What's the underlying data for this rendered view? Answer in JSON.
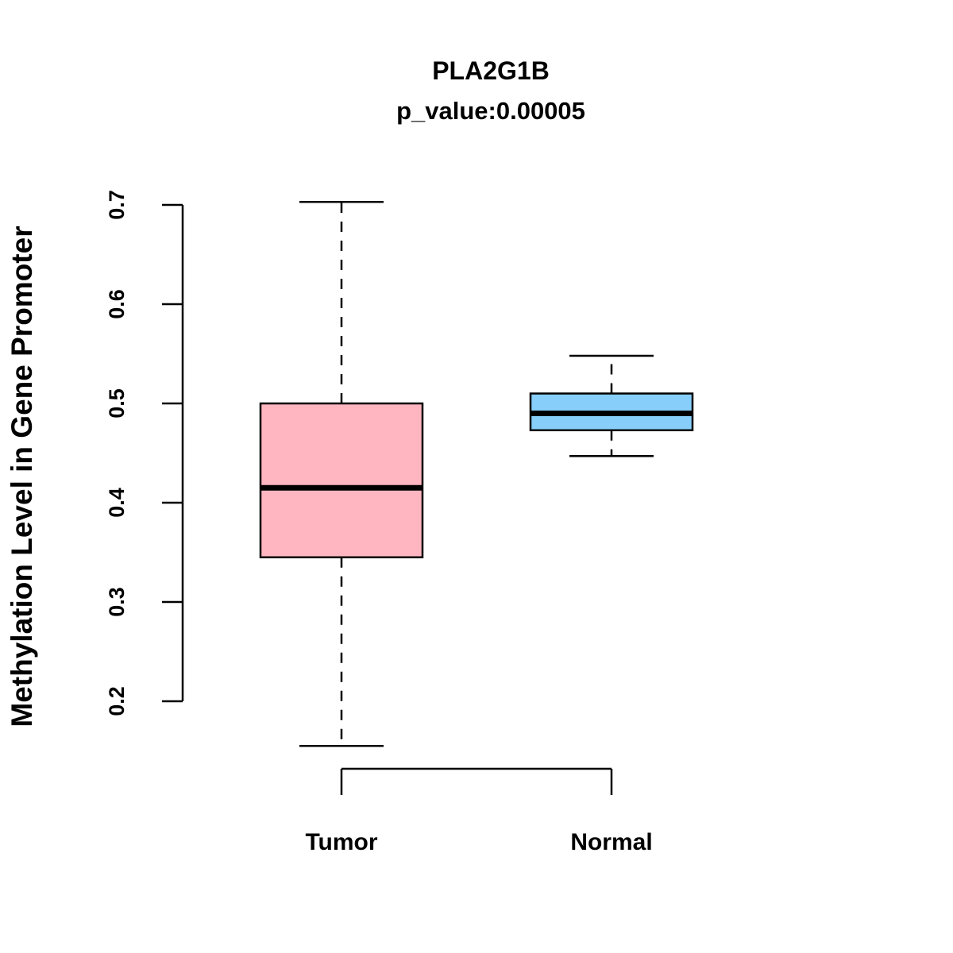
{
  "chart_data": {
    "type": "boxplot",
    "title": "PLA2G1B",
    "subtitle": "p_value:0.00005",
    "ylabel": "Methylation Level in Gene Promoter",
    "xlabel": "",
    "ylim": [
      0.2,
      0.7
    ],
    "yticks": [
      0.2,
      0.3,
      0.4,
      0.5,
      0.6,
      0.7
    ],
    "grid": false,
    "legend": "none",
    "categories": [
      "Tumor",
      "Normal"
    ],
    "series": [
      {
        "name": "Tumor",
        "whisker_low": 0.155,
        "q1": 0.345,
        "median": 0.415,
        "q3": 0.5,
        "whisker_high": 0.703,
        "color": "#FFB6C1"
      },
      {
        "name": "Normal",
        "whisker_low": 0.447,
        "q1": 0.473,
        "median": 0.49,
        "q3": 0.51,
        "whisker_high": 0.548,
        "color": "#87CEFA"
      }
    ]
  }
}
